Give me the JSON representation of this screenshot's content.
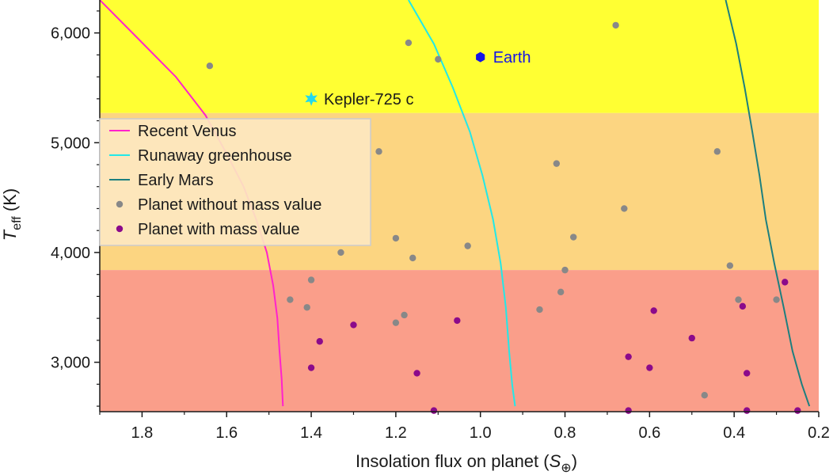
{
  "chart_data": {
    "type": "scatter",
    "xlabel_main": "Insolation flux on planet (",
    "xlabel_sym": "S",
    "xlabel_sub": "⊕",
    "xlabel_end": ")",
    "ylabel_main": "T",
    "ylabel_sub": "eff",
    "ylabel_end": " (K)",
    "xlim": [
      1.9,
      0.2
    ],
    "ylim": [
      2550,
      6300
    ],
    "x_reversed": true,
    "x_ticks": [
      1.8,
      1.6,
      1.4,
      1.2,
      1.0,
      0.8,
      0.6,
      0.4,
      0.2
    ],
    "x_tick_labels": [
      "1.8",
      "1.6",
      "1.4",
      "1.2",
      "1.0",
      "0.8",
      "0.6",
      "0.4",
      "0.2"
    ],
    "y_ticks": [
      3000,
      4000,
      5000,
      6000
    ],
    "y_tick_labels": [
      "3,000",
      "4,000",
      "5,000",
      "6,000"
    ],
    "grid": false,
    "legend_position": "left",
    "bands": [
      {
        "from": 5270,
        "to": 6300,
        "color": "#ffff33"
      },
      {
        "from": 3840,
        "to": 5270,
        "color": "#fcd581"
      },
      {
        "from": 2550,
        "to": 3840,
        "color": "#fa9e8a"
      }
    ],
    "series": [
      {
        "name": "Recent Venus",
        "kind": "line",
        "color": "#ff22cc",
        "points": [
          [
            1.9,
            6300
          ],
          [
            1.81,
            5950
          ],
          [
            1.72,
            5600
          ],
          [
            1.65,
            5250
          ],
          [
            1.6,
            4900
          ],
          [
            1.56,
            4600
          ],
          [
            1.53,
            4300
          ],
          [
            1.505,
            4000
          ],
          [
            1.49,
            3700
          ],
          [
            1.48,
            3400
          ],
          [
            1.475,
            3100
          ],
          [
            1.47,
            2850
          ],
          [
            1.467,
            2600
          ]
        ]
      },
      {
        "name": "Runaway greenhouse",
        "kind": "line",
        "color": "#22e8e8",
        "points": [
          [
            1.17,
            6300
          ],
          [
            1.11,
            5900
          ],
          [
            1.065,
            5500
          ],
          [
            1.025,
            5100
          ],
          [
            0.995,
            4700
          ],
          [
            0.97,
            4300
          ],
          [
            0.952,
            3900
          ],
          [
            0.94,
            3500
          ],
          [
            0.932,
            3100
          ],
          [
            0.925,
            2800
          ],
          [
            0.918,
            2600
          ]
        ]
      },
      {
        "name": "Early Mars",
        "kind": "line",
        "color": "#1c7f7f",
        "points": [
          [
            0.42,
            6300
          ],
          [
            0.395,
            5900
          ],
          [
            0.375,
            5500
          ],
          [
            0.357,
            5100
          ],
          [
            0.34,
            4700
          ],
          [
            0.325,
            4300
          ],
          [
            0.305,
            3900
          ],
          [
            0.283,
            3500
          ],
          [
            0.262,
            3100
          ],
          [
            0.24,
            2800
          ],
          [
            0.222,
            2600
          ]
        ]
      },
      {
        "name": "Planet without mass value",
        "kind": "scatter",
        "color": "#888888",
        "points": [
          [
            1.64,
            5700
          ],
          [
            1.17,
            5910
          ],
          [
            1.1,
            5760
          ],
          [
            0.68,
            6070
          ],
          [
            1.24,
            4920
          ],
          [
            0.82,
            4810
          ],
          [
            0.44,
            4920
          ],
          [
            0.66,
            4400
          ],
          [
            1.2,
            4130
          ],
          [
            0.78,
            4140
          ],
          [
            1.03,
            4060
          ],
          [
            1.33,
            4000
          ],
          [
            1.16,
            3950
          ],
          [
            0.41,
            3880
          ],
          [
            0.8,
            3840
          ],
          [
            1.4,
            3750
          ],
          [
            0.81,
            3640
          ],
          [
            1.45,
            3570
          ],
          [
            0.39,
            3570
          ],
          [
            0.3,
            3570
          ],
          [
            1.41,
            3500
          ],
          [
            0.86,
            3480
          ],
          [
            1.18,
            3430
          ],
          [
            1.2,
            3360
          ],
          [
            0.47,
            2700
          ]
        ]
      },
      {
        "name": "Planet with mass value",
        "kind": "scatter",
        "color": "#8b0a8b",
        "points": [
          [
            0.28,
            3730
          ],
          [
            0.38,
            3510
          ],
          [
            0.59,
            3470
          ],
          [
            1.055,
            3380
          ],
          [
            1.3,
            3340
          ],
          [
            0.5,
            3220
          ],
          [
            1.38,
            3190
          ],
          [
            0.65,
            3050
          ],
          [
            1.4,
            2950
          ],
          [
            0.6,
            2950
          ],
          [
            1.15,
            2900
          ],
          [
            0.37,
            2900
          ],
          [
            1.11,
            2560
          ],
          [
            0.65,
            2560
          ],
          [
            0.37,
            2560
          ],
          [
            0.25,
            2560
          ]
        ]
      }
    ],
    "annotations": [
      {
        "label": "Earth",
        "x": 1.0,
        "y": 5780,
        "marker": "hexagon",
        "color": "#1414e6",
        "text_color": "#1414e6"
      },
      {
        "label": "Kepler-725 c",
        "x": 1.4,
        "y": 5400,
        "marker": "star",
        "color": "#22d8ee",
        "text_color": "#1a1a1a"
      }
    ]
  }
}
